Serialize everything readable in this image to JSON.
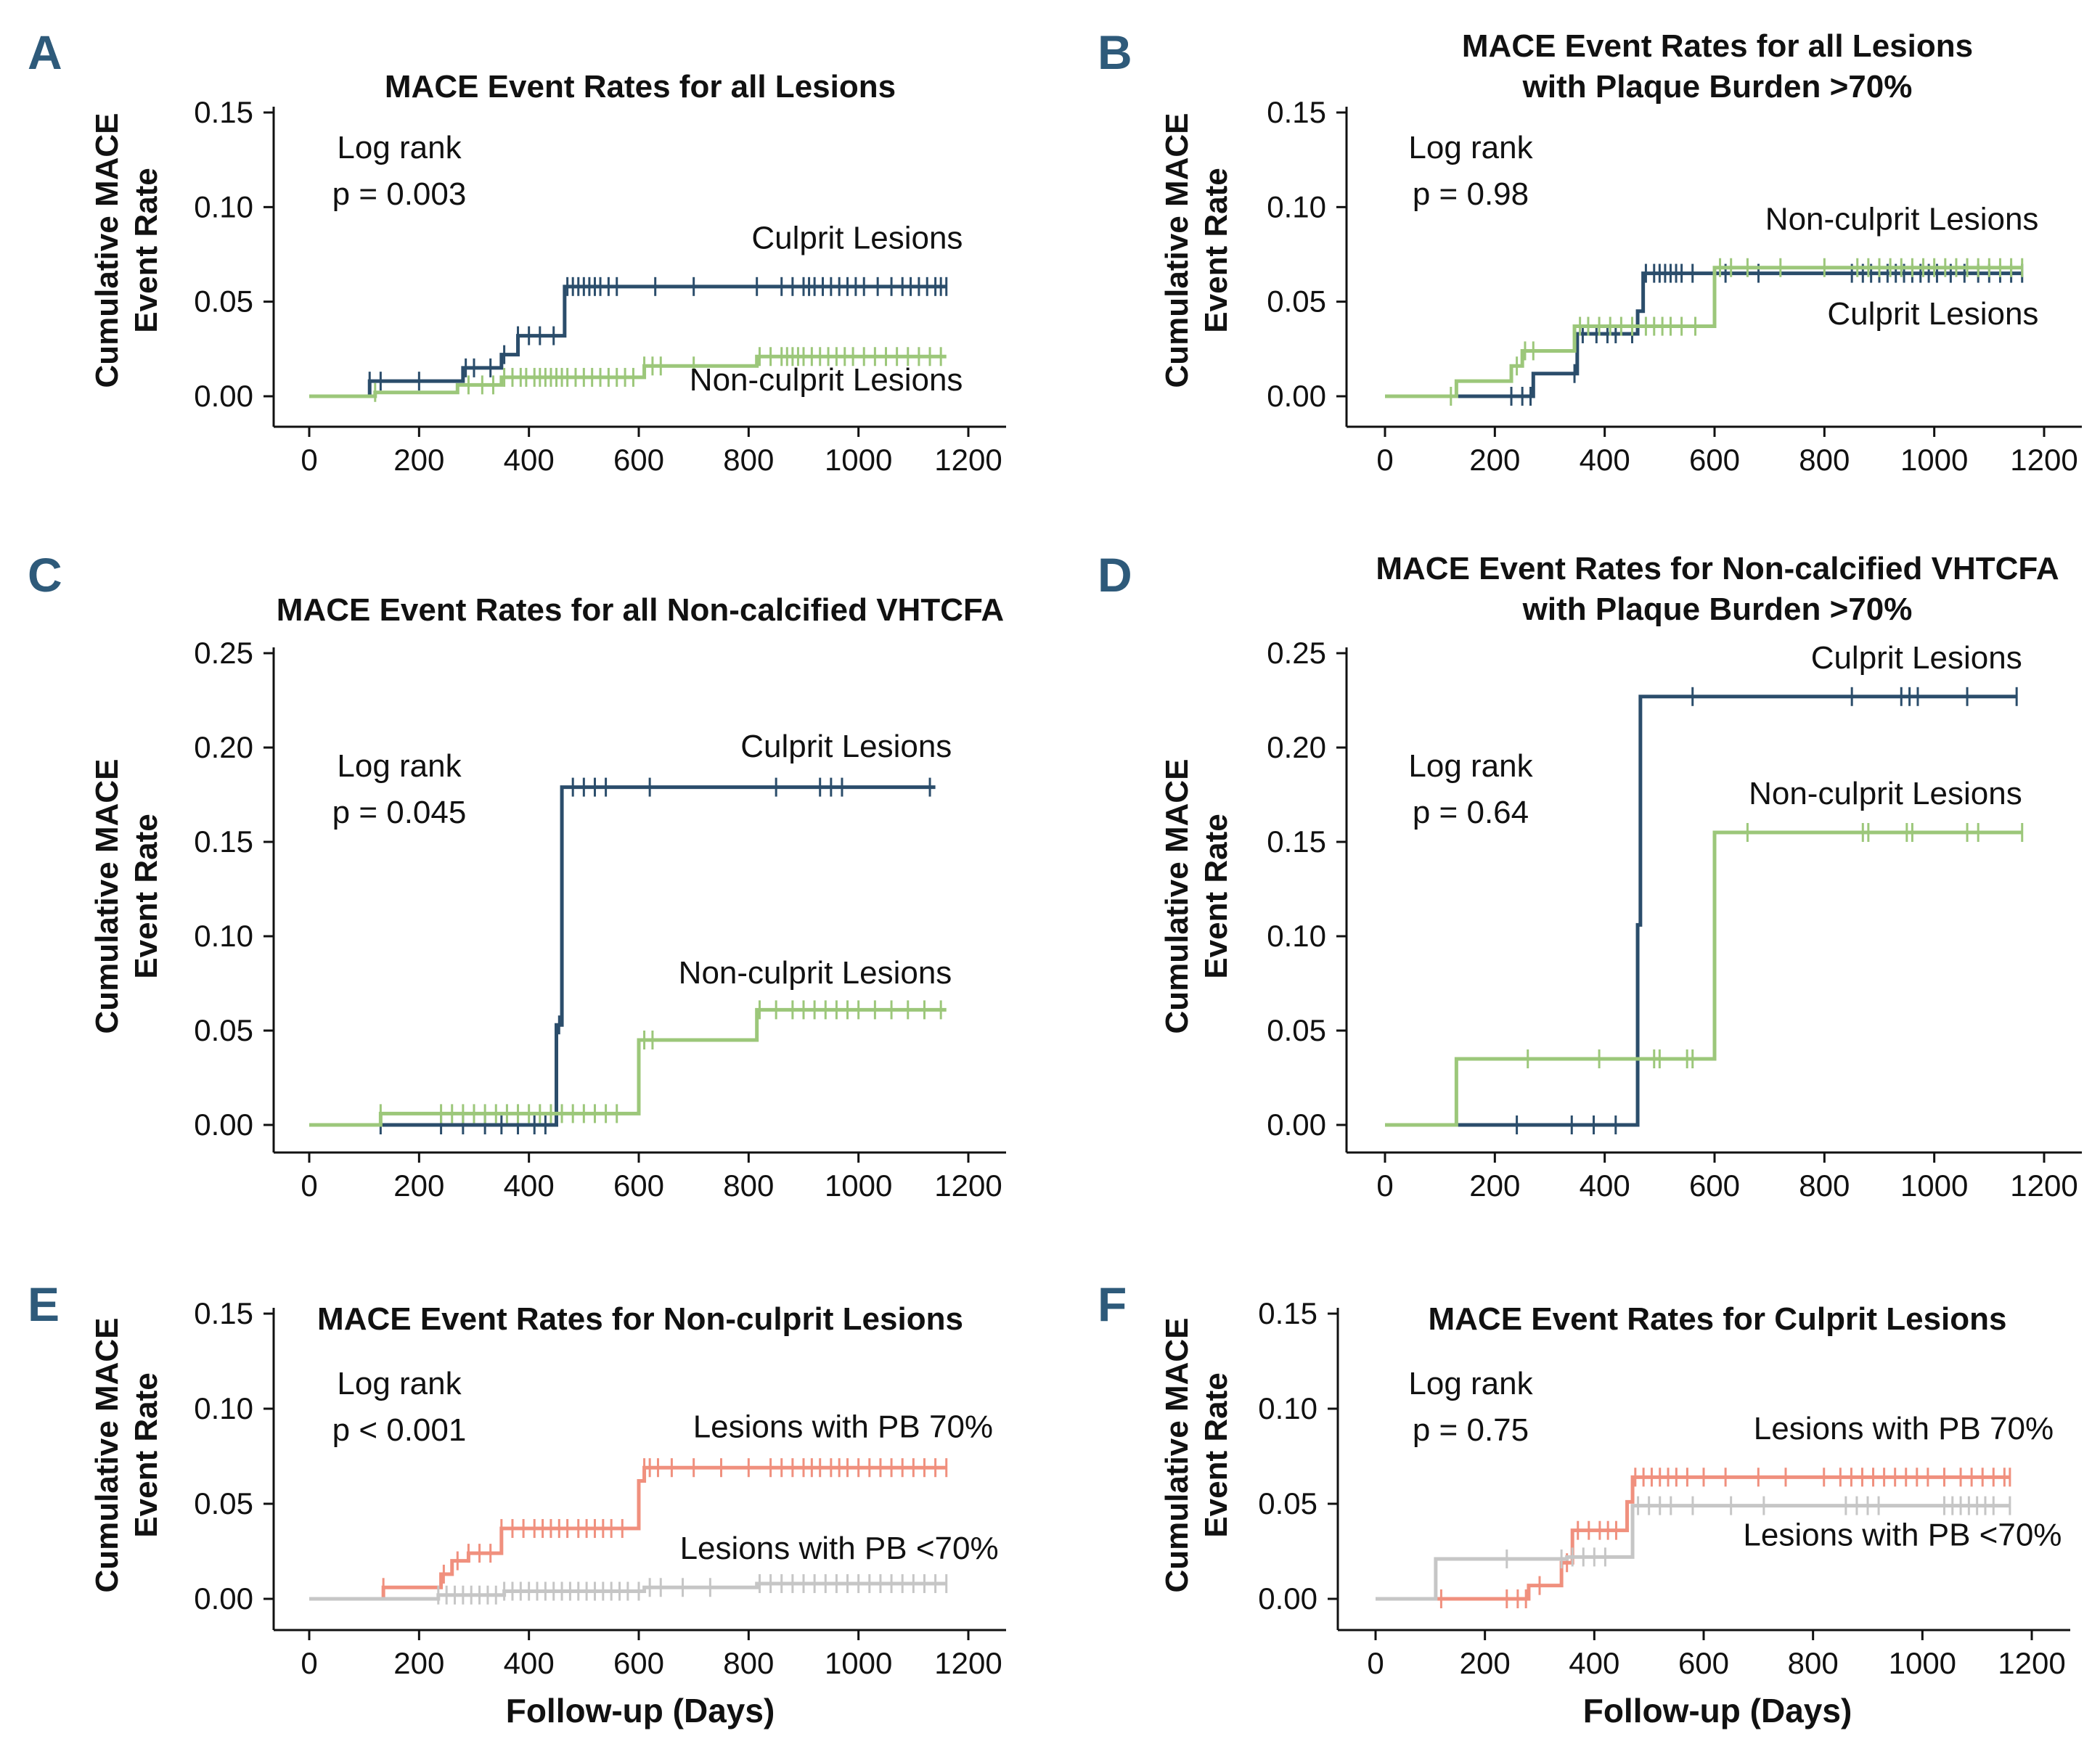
{
  "colors": {
    "culprit": "#2b4d6b",
    "nonculprit": "#9cc77a",
    "pb_high": "#f0907e",
    "pb_low": "#c6c6c6",
    "letter": "#2e5a7a"
  },
  "chart_data": [
    {
      "letter": "A",
      "type": "line",
      "title": [
        "MACE Event Rates for all Lesions"
      ],
      "ylabel": [
        "Cumulative MACE",
        "Event Rate"
      ],
      "xlabel": "",
      "xlim": [
        0,
        1200
      ],
      "ylim": [
        0,
        0.15
      ],
      "x_ticks": [
        0,
        200,
        400,
        600,
        800,
        1000,
        1200
      ],
      "x_tick_labels": [
        "0",
        "200",
        "400",
        "600",
        "800",
        "1000",
        "1200"
      ],
      "y_ticks": [
        0,
        0.05,
        0.1,
        0.15
      ],
      "y_tick_labels": [
        "0.00",
        "0.05",
        "0.10",
        "0.15"
      ],
      "annotation": [
        "Log rank",
        "p = 0.003"
      ],
      "series": [
        {
          "name": "Culprit Lesions",
          "color": "culprit",
          "x": [
            0,
            110,
            280,
            350,
            380,
            465,
            1160
          ],
          "y": [
            0,
            0.008,
            0.015,
            0.022,
            0.032,
            0.058,
            0.058
          ],
          "censor_x": [
            110,
            130,
            200,
            285,
            300,
            330,
            355,
            380,
            400,
            420,
            445,
            470,
            480,
            490,
            500,
            510,
            520,
            530,
            545,
            560,
            630,
            700,
            815,
            860,
            880,
            900,
            910,
            920,
            935,
            950,
            965,
            980,
            995,
            1010,
            1035,
            1060,
            1080,
            1095,
            1110,
            1125,
            1140,
            1150,
            1160
          ]
        },
        {
          "name": "Non-culprit Lesions",
          "color": "nonculprit",
          "x": [
            0,
            120,
            270,
            350,
            610,
            815,
            1160
          ],
          "y": [
            0,
            0.002,
            0.006,
            0.01,
            0.016,
            0.021,
            0.021
          ],
          "censor_x": [
            120,
            290,
            315,
            335,
            355,
            370,
            385,
            395,
            410,
            420,
            430,
            440,
            450,
            460,
            470,
            485,
            500,
            515,
            530,
            545,
            560,
            575,
            590,
            610,
            625,
            640,
            700,
            820,
            840,
            860,
            870,
            880,
            890,
            900,
            915,
            930,
            945,
            960,
            975,
            990,
            1010,
            1030,
            1050,
            1070,
            1090,
            1110,
            1130,
            1150
          ]
        }
      ],
      "series_labels": [
        {
          "text": "Culprit Lesions",
          "x": 1190,
          "y": 0.078
        },
        {
          "text": "Non-culprit Lesions",
          "x": 1190,
          "y": 0.003
        }
      ]
    },
    {
      "letter": "B",
      "type": "line",
      "title": [
        "MACE Event Rates for all Lesions",
        "with Plaque Burden >70%"
      ],
      "ylabel": [
        "Cumulative MACE",
        "Event Rate"
      ],
      "xlabel": "",
      "xlim": [
        0,
        1200
      ],
      "ylim": [
        0,
        0.15
      ],
      "x_ticks": [
        0,
        200,
        400,
        600,
        800,
        1000,
        1200
      ],
      "x_tick_labels": [
        "0",
        "200",
        "400",
        "600",
        "800",
        "1000",
        "1200"
      ],
      "y_ticks": [
        0,
        0.05,
        0.1,
        0.15
      ],
      "y_tick_labels": [
        "0.00",
        "0.05",
        "0.10",
        "0.15"
      ],
      "annotation": [
        "Log rank",
        "p = 0.98"
      ],
      "series": [
        {
          "name": "Culprit Lesions",
          "color": "culprit",
          "x": [
            0,
            130,
            270,
            350,
            460,
            470,
            1160
          ],
          "y": [
            0,
            0,
            0.012,
            0.033,
            0.045,
            0.065,
            0.065
          ],
          "censor_x": [
            230,
            250,
            265,
            345,
            360,
            385,
            405,
            420,
            450,
            475,
            490,
            500,
            510,
            520,
            530,
            540,
            560,
            620,
            680,
            850,
            870,
            885,
            900,
            915,
            930,
            945,
            960,
            975,
            990,
            1005,
            1030,
            1055,
            1080,
            1100,
            1120,
            1140,
            1160
          ]
        },
        {
          "name": "Non-culprit Lesions",
          "color": "nonculprit",
          "x": [
            0,
            130,
            230,
            250,
            345,
            600,
            1160
          ],
          "y": [
            0,
            0.008,
            0.016,
            0.024,
            0.037,
            0.068,
            0.068
          ],
          "censor_x": [
            120,
            240,
            255,
            270,
            355,
            370,
            390,
            410,
            430,
            450,
            475,
            490,
            505,
            520,
            540,
            565,
            610,
            630,
            660,
            720,
            800,
            860,
            880,
            900,
            920,
            940,
            960,
            980,
            1000,
            1020,
            1040,
            1060,
            1080,
            1100,
            1120,
            1140,
            1160
          ]
        }
      ],
      "series_labels": [
        {
          "text": "Non-culprit Lesions",
          "x": 1190,
          "y": 0.088
        },
        {
          "text": "Culprit Lesions",
          "x": 1190,
          "y": 0.038
        }
      ]
    },
    {
      "letter": "C",
      "type": "line",
      "title": [
        "MACE Event Rates for all Non-calcified VHTCFA"
      ],
      "ylabel": [
        "Cumulative MACE",
        "Event Rate"
      ],
      "xlabel": "",
      "xlim": [
        0,
        1200
      ],
      "ylim": [
        0,
        0.25
      ],
      "x_ticks": [
        0,
        200,
        400,
        600,
        800,
        1000,
        1200
      ],
      "x_tick_labels": [
        "0",
        "200",
        "400",
        "600",
        "800",
        "1000",
        "1200"
      ],
      "y_ticks": [
        0,
        0.05,
        0.1,
        0.15,
        0.2,
        0.25
      ],
      "y_tick_labels": [
        "0.00",
        "0.05",
        "0.10",
        "0.15",
        "0.20",
        "0.25"
      ],
      "annotation": [
        "Log rank",
        "p = 0.045"
      ],
      "series": [
        {
          "name": "Culprit Lesions",
          "color": "culprit",
          "x": [
            0,
            450,
            460,
            1140
          ],
          "y": [
            0,
            0.053,
            0.179,
            0.179
          ],
          "censor_x": [
            130,
            240,
            280,
            320,
            350,
            380,
            410,
            430,
            455,
            480,
            500,
            520,
            540,
            620,
            850,
            930,
            950,
            970,
            1130
          ]
        },
        {
          "name": "Non-culprit Lesions",
          "color": "nonculprit",
          "x": [
            0,
            130,
            600,
            815,
            1160
          ],
          "y": [
            0,
            0.006,
            0.045,
            0.061,
            0.061
          ],
          "censor_x": [
            130,
            240,
            260,
            280,
            300,
            320,
            340,
            360,
            380,
            400,
            420,
            440,
            460,
            480,
            500,
            520,
            540,
            560,
            610,
            625,
            820,
            850,
            880,
            900,
            920,
            940,
            960,
            980,
            1000,
            1030,
            1060,
            1090,
            1120,
            1150
          ]
        }
      ],
      "series_labels": [
        {
          "text": "Culprit Lesions",
          "x": 1170,
          "y": 0.195
        },
        {
          "text": "Non-culprit Lesions",
          "x": 1170,
          "y": 0.075
        }
      ]
    },
    {
      "letter": "D",
      "type": "line",
      "title": [
        "MACE Event Rates for Non-calcified VHTCFA",
        "with Plaque Burden >70%"
      ],
      "ylabel": [
        "Cumulative MACE",
        "Event Rate"
      ],
      "xlabel": "",
      "xlim": [
        0,
        1200
      ],
      "ylim": [
        0,
        0.25
      ],
      "x_ticks": [
        0,
        200,
        400,
        600,
        800,
        1000,
        1200
      ],
      "x_tick_labels": [
        "0",
        "200",
        "400",
        "600",
        "800",
        "1000",
        "1200"
      ],
      "y_ticks": [
        0,
        0.05,
        0.1,
        0.15,
        0.2,
        0.25
      ],
      "y_tick_labels": [
        "0.00",
        "0.05",
        "0.10",
        "0.15",
        "0.20",
        "0.25"
      ],
      "annotation": [
        "Log rank",
        "p = 0.64"
      ],
      "series": [
        {
          "name": "Culprit Lesions",
          "color": "culprit",
          "x": [
            0,
            460,
            465,
            1150
          ],
          "y": [
            0,
            0.106,
            0.227,
            0.227
          ],
          "censor_x": [
            240,
            340,
            380,
            420,
            560,
            850,
            940,
            955,
            970,
            1060,
            1150
          ]
        },
        {
          "name": "Non-culprit Lesions",
          "color": "nonculprit",
          "x": [
            0,
            130,
            600,
            1160
          ],
          "y": [
            0,
            0.035,
            0.155,
            0.155
          ],
          "censor_x": [
            260,
            390,
            490,
            500,
            550,
            560,
            660,
            870,
            880,
            950,
            960,
            1060,
            1080,
            1160
          ]
        }
      ],
      "series_labels": [
        {
          "text": "Culprit Lesions",
          "x": 1160,
          "y": 0.242
        },
        {
          "text": "Non-culprit Lesions",
          "x": 1160,
          "y": 0.17
        }
      ]
    },
    {
      "letter": "E",
      "type": "line",
      "title": [
        "MACE Event Rates for Non-culprit Lesions"
      ],
      "ylabel": [
        "Cumulative MACE",
        "Event Rate"
      ],
      "xlabel": "Follow-up (Days)",
      "xlim": [
        0,
        1200
      ],
      "ylim": [
        0,
        0.15
      ],
      "x_ticks": [
        0,
        200,
        400,
        600,
        800,
        1000,
        1200
      ],
      "x_tick_labels": [
        "0",
        "200",
        "400",
        "600",
        "800",
        "1000",
        "1200"
      ],
      "y_ticks": [
        0,
        0.05,
        0.1,
        0.15
      ],
      "y_tick_labels": [
        "0.00",
        "0.05",
        "0.10",
        "0.15"
      ],
      "annotation": [
        "Log rank",
        "p < 0.001"
      ],
      "series": [
        {
          "name": "Lesions with PB  70%",
          "color": "pb_high",
          "x": [
            0,
            135,
            240,
            260,
            290,
            350,
            600,
            610,
            1160
          ],
          "y": [
            0,
            0.006,
            0.013,
            0.02,
            0.024,
            0.037,
            0.062,
            0.069,
            0.069
          ],
          "censor_x": [
            135,
            245,
            270,
            290,
            310,
            330,
            350,
            370,
            390,
            410,
            425,
            440,
            455,
            470,
            490,
            505,
            520,
            535,
            550,
            570,
            610,
            620,
            635,
            660,
            700,
            750,
            800,
            840,
            860,
            880,
            900,
            915,
            930,
            950,
            965,
            980,
            1000,
            1020,
            1040,
            1060,
            1080,
            1100,
            1120,
            1140,
            1160
          ]
        },
        {
          "name": "Lesions with PB <70%",
          "color": "pb_low",
          "x": [
            0,
            235,
            355,
            610,
            815,
            1160
          ],
          "y": [
            0,
            0.002,
            0.004,
            0.006,
            0.008,
            0.008
          ],
          "censor_x": [
            235,
            250,
            265,
            280,
            295,
            310,
            325,
            340,
            355,
            370,
            385,
            400,
            415,
            430,
            445,
            460,
            475,
            490,
            505,
            520,
            535,
            550,
            565,
            580,
            600,
            620,
            640,
            680,
            730,
            820,
            840,
            860,
            880,
            900,
            920,
            940,
            960,
            980,
            1000,
            1020,
            1040,
            1060,
            1080,
            1100,
            1120,
            1140,
            1160
          ]
        }
      ],
      "series_labels": [
        {
          "text": "Lesions with PB  70%",
          "x": 1245,
          "y": 0.085
        },
        {
          "text": "Lesions with PB <70%",
          "x": 1255,
          "y": 0.021
        }
      ]
    },
    {
      "letter": "F",
      "type": "line",
      "title": [
        "MACE Event Rates for Culprit Lesions"
      ],
      "ylabel": [
        "Cumulative MACE",
        "Event Rate"
      ],
      "xlabel": "Follow-up (Days)",
      "xlim": [
        0,
        1200
      ],
      "ylim": [
        0,
        0.15
      ],
      "x_ticks": [
        0,
        200,
        400,
        600,
        800,
        1000,
        1200
      ],
      "x_tick_labels": [
        "0",
        "200",
        "400",
        "600",
        "800",
        "1000",
        "1200"
      ],
      "y_ticks": [
        0,
        0.05,
        0.1,
        0.15
      ],
      "y_tick_labels": [
        "0.00",
        "0.05",
        "0.10",
        "0.15"
      ],
      "annotation": [
        "Log rank",
        "p = 0.75"
      ],
      "series": [
        {
          "name": "Lesions with PB  70%",
          "color": "pb_high",
          "x": [
            0,
            280,
            340,
            360,
            460,
            470,
            1160
          ],
          "y": [
            0,
            0.007,
            0.019,
            0.036,
            0.051,
            0.064,
            0.064
          ],
          "censor_x": [
            120,
            240,
            260,
            275,
            300,
            350,
            370,
            390,
            410,
            425,
            440,
            475,
            490,
            505,
            520,
            535,
            550,
            570,
            600,
            640,
            700,
            750,
            820,
            850,
            870,
            890,
            910,
            930,
            950,
            970,
            990,
            1010,
            1040,
            1070,
            1090,
            1110,
            1130,
            1150,
            1160
          ]
        },
        {
          "name": "Lesions with PB <70%",
          "color": "pb_low",
          "x": [
            0,
            110,
            350,
            470,
            1160
          ],
          "y": [
            0,
            0.021,
            0.022,
            0.049,
            0.049
          ],
          "censor_x": [
            240,
            340,
            360,
            380,
            400,
            420,
            480,
            500,
            520,
            540,
            580,
            650,
            710,
            860,
            880,
            900,
            920,
            1040,
            1055,
            1070,
            1085,
            1100,
            1115,
            1130,
            1160
          ]
        }
      ],
      "series_labels": [
        {
          "text": "Lesions with PB  70%",
          "x": 1240,
          "y": 0.084
        },
        {
          "text": "Lesions with PB <70%",
          "x": 1255,
          "y": 0.028
        }
      ]
    }
  ]
}
